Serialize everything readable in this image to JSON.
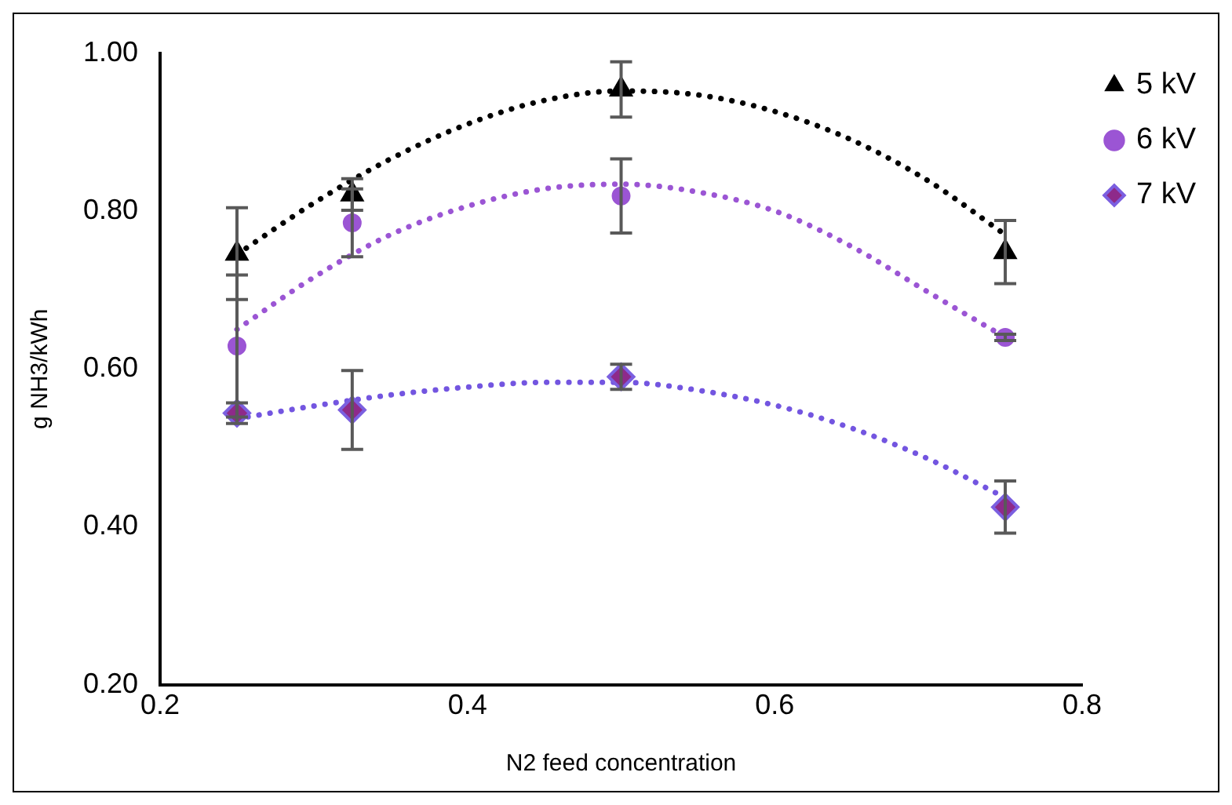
{
  "chart_data": {
    "type": "scatter",
    "xlabel": "N2 feed concentration",
    "ylabel": "g NH3/kWh",
    "xlim": [
      0.2,
      0.8
    ],
    "xticks": [
      0.2,
      0.4,
      0.6,
      0.8
    ],
    "ylim": [
      0.2,
      1.0
    ],
    "yticks": [
      {
        "value": 0.2,
        "label": "0.20"
      },
      {
        "value": 0.4,
        "label": "0.40"
      },
      {
        "value": 0.6,
        "label": "0.60"
      },
      {
        "value": 0.8,
        "label": "0.80"
      },
      {
        "value": 1.0,
        "label": "1.00"
      }
    ],
    "grid": false,
    "legend": "right",
    "series": [
      {
        "name": "5 kV",
        "type": "scatter",
        "marker": "triangle",
        "color": "#000000",
        "x": [
          0.25,
          0.325,
          0.5,
          0.75
        ],
        "values": [
          0.746,
          0.821,
          0.954,
          0.748
        ],
        "errors": [
          0.058,
          0.02,
          0.035,
          0.04
        ]
      },
      {
        "name": "6 kV",
        "type": "scatter",
        "marker": "circle",
        "color": "#9b55d4",
        "x": [
          0.25,
          0.325,
          0.5,
          0.75
        ],
        "values": [
          0.629,
          0.785,
          0.819,
          0.64
        ],
        "errors": [
          0.09,
          0.043,
          0.047,
          0.004
        ]
      },
      {
        "name": "7 kV",
        "type": "scatter",
        "marker": "diamond",
        "color": "#8e2a8a",
        "x": [
          0.25,
          0.325,
          0.5,
          0.75
        ],
        "values": [
          0.544,
          0.548,
          0.59,
          0.425
        ],
        "errors": [
          0.013,
          0.05,
          0.016,
          0.033
        ]
      },
      {
        "type": "line",
        "marker": "none",
        "line_style": "dotted",
        "color": "#000000",
        "x": [
          0.25,
          0.3,
          0.35,
          0.4,
          0.45,
          0.5,
          0.55,
          0.6,
          0.65,
          0.7,
          0.75
        ],
        "values": [
          0.745,
          0.81,
          0.866,
          0.91,
          0.94,
          0.952,
          0.947,
          0.926,
          0.89,
          0.838,
          0.77
        ]
      },
      {
        "type": "line",
        "marker": "none",
        "line_style": "dotted",
        "color": "#9b55d4",
        "x": [
          0.25,
          0.3,
          0.35,
          0.4,
          0.45,
          0.5,
          0.55,
          0.6,
          0.65,
          0.7,
          0.75
        ],
        "values": [
          0.65,
          0.716,
          0.77,
          0.806,
          0.828,
          0.834,
          0.824,
          0.8,
          0.755,
          0.697,
          0.64
        ]
      },
      {
        "type": "line",
        "marker": "none",
        "line_style": "dotted",
        "color": "#7355e0",
        "x": [
          0.25,
          0.3,
          0.35,
          0.4,
          0.45,
          0.5,
          0.55,
          0.6,
          0.65,
          0.7,
          0.75
        ],
        "values": [
          0.537,
          0.553,
          0.567,
          0.577,
          0.583,
          0.583,
          0.573,
          0.554,
          0.525,
          0.486,
          0.437
        ]
      }
    ]
  }
}
